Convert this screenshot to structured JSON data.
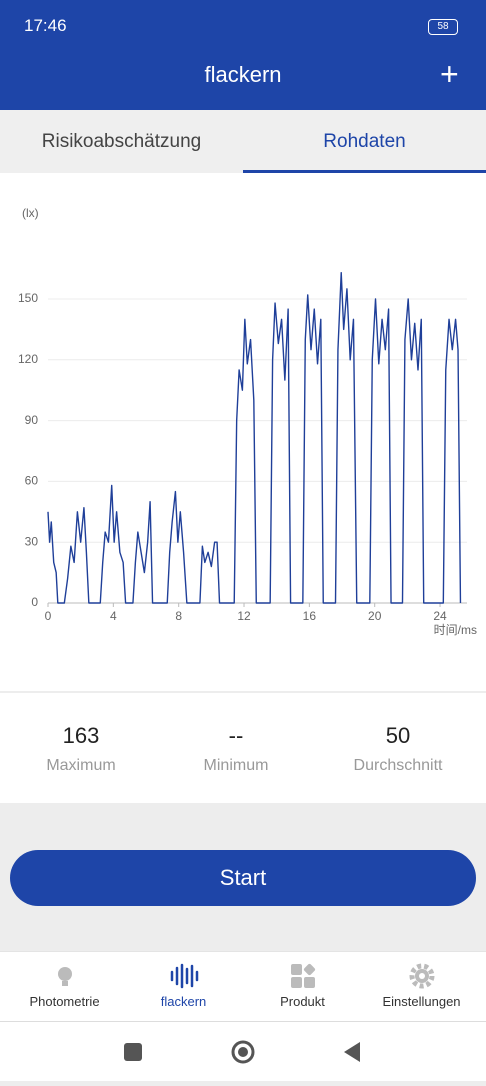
{
  "status_bar": {
    "time": "17:46",
    "battery": "58"
  },
  "header": {
    "title": "flackern",
    "action": "+"
  },
  "tabs": [
    "Risikoabschätzung",
    "Rohdaten"
  ],
  "chart_data": {
    "type": "line",
    "y_label": "(lx)",
    "x_label": "时间/ms",
    "color": "#1f3f99",
    "xlim": [
      0,
      25.65
    ],
    "xticks": [
      0,
      4,
      8,
      12,
      16,
      20,
      24
    ],
    "ylim": [
      0,
      180
    ],
    "yticks": [
      0,
      30,
      60,
      90,
      120,
      150
    ],
    "grid": true,
    "series": [
      {
        "name": null,
        "color": "#1f3f99",
        "x": [
          0,
          0.1,
          0.2,
          0.35,
          0.5,
          0.6,
          1.0,
          1.2,
          1.4,
          1.6,
          1.8,
          2.0,
          2.2,
          2.35,
          2.5,
          3.2,
          3.35,
          3.5,
          3.7,
          3.9,
          4.05,
          4.2,
          4.4,
          4.6,
          4.75,
          5.2,
          5.35,
          5.5,
          5.7,
          5.9,
          6.1,
          6.25,
          6.4,
          7.3,
          7.45,
          7.6,
          7.8,
          7.95,
          8.1,
          8.3,
          8.5,
          9.3,
          9.45,
          9.6,
          9.8,
          10.0,
          10.2,
          10.35,
          10.5,
          11.4,
          11.55,
          11.7,
          11.9,
          12.05,
          12.2,
          12.4,
          12.6,
          12.75,
          13.6,
          13.75,
          13.9,
          14.1,
          14.3,
          14.5,
          14.7,
          14.85,
          15.6,
          15.75,
          15.9,
          16.1,
          16.3,
          16.5,
          16.7,
          16.85,
          17.6,
          17.75,
          17.95,
          18.1,
          18.3,
          18.5,
          18.7,
          18.9,
          19.7,
          19.85,
          20.05,
          20.25,
          20.45,
          20.65,
          20.85,
          21.0,
          21.7,
          21.85,
          22.05,
          22.25,
          22.45,
          22.65,
          22.85,
          23.0,
          24.2,
          24.35,
          24.55,
          24.75,
          24.95,
          25.1,
          25.25
        ],
        "values": [
          45,
          30,
          40,
          20,
          15,
          0,
          0,
          12,
          28,
          20,
          45,
          30,
          47,
          25,
          0,
          0,
          20,
          35,
          30,
          58,
          30,
          45,
          25,
          20,
          0,
          0,
          20,
          35,
          25,
          15,
          30,
          50,
          0,
          0,
          25,
          40,
          55,
          30,
          45,
          25,
          0,
          0,
          28,
          20,
          25,
          18,
          30,
          30,
          0,
          0,
          90,
          115,
          105,
          140,
          118,
          130,
          100,
          0,
          0,
          120,
          148,
          128,
          140,
          110,
          145,
          0,
          0,
          130,
          152,
          125,
          145,
          118,
          140,
          0,
          0,
          125,
          163,
          135,
          155,
          120,
          140,
          0,
          0,
          120,
          150,
          118,
          140,
          125,
          145,
          0,
          0,
          130,
          150,
          120,
          138,
          115,
          140,
          0,
          0,
          115,
          140,
          125,
          140,
          125,
          0
        ]
      }
    ]
  },
  "stats": [
    {
      "value": 163,
      "label": "Maximum"
    },
    {
      "value": "--",
      "label": "Minimum"
    },
    {
      "value": 50,
      "label": "Durchschnitt"
    }
  ],
  "button": "Start",
  "nav": [
    "Photometrie",
    "flackern",
    "Produkt",
    "Einstellungen"
  ]
}
